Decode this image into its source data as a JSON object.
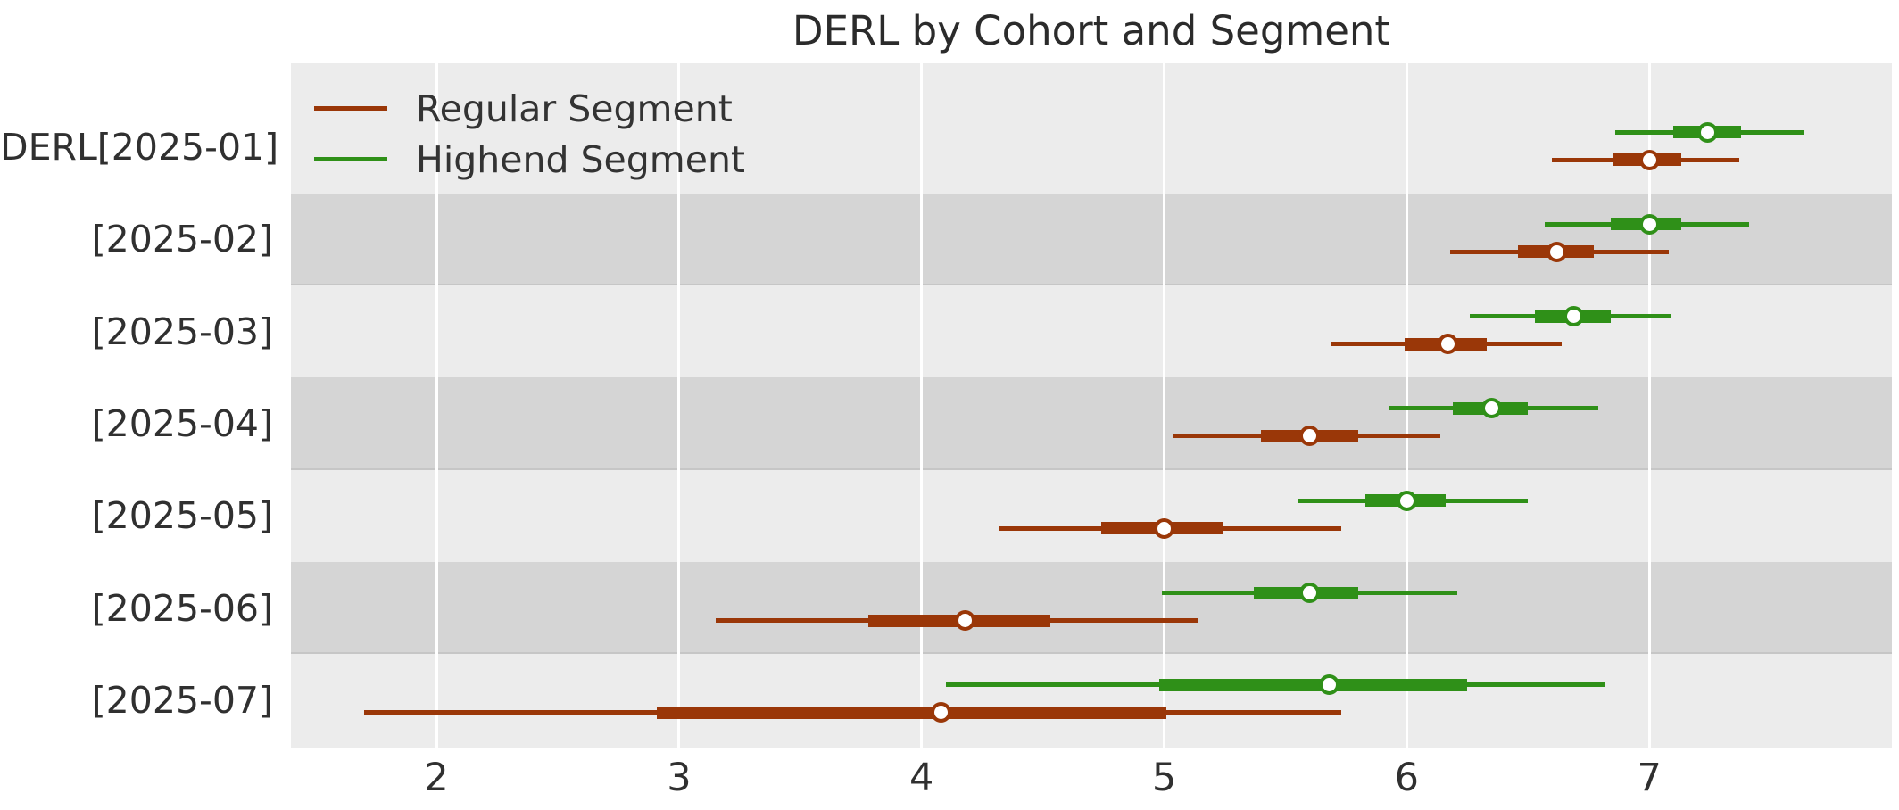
{
  "title": "DERL by Cohort and Segment",
  "colors": {
    "regular": "#9a3708",
    "highend": "#2f9018",
    "plot_bg_light": "#ececec",
    "band_dark": "#d5d5d5",
    "gridline": "#ffffff",
    "text": "#303030"
  },
  "legend": {
    "items": [
      {
        "label": "Regular Segment",
        "color_key": "regular"
      },
      {
        "label": "Highend Segment",
        "color_key": "highend"
      }
    ]
  },
  "chart_data": {
    "type": "scatter",
    "subtype": "forest_interval_plot",
    "title": "DERL by Cohort and Segment",
    "xlabel": "",
    "ylabel": "",
    "categories": [
      "DERL[2025-01]",
      "[2025-02]",
      "[2025-03]",
      "[2025-04]",
      "[2025-05]",
      "[2025-06]",
      "[2025-07]"
    ],
    "xticks": [
      2,
      3,
      4,
      5,
      6,
      7
    ],
    "xlim": [
      1.4,
      8.0
    ],
    "grid": "vertical-white-on-gray",
    "row_banding": "alternating (rows 2,4,6 darker)",
    "legend_position": "upper-left-inside",
    "series": [
      {
        "name": "Highend Segment",
        "color_key": "highend",
        "row_position": "upper",
        "points": [
          {
            "category": "DERL[2025-01]",
            "median": 7.24,
            "inner": [
              7.1,
              7.38
            ],
            "outer": [
              6.86,
              7.64
            ]
          },
          {
            "category": "[2025-02]",
            "median": 7.0,
            "inner": [
              6.84,
              7.13
            ],
            "outer": [
              6.57,
              7.41
            ]
          },
          {
            "category": "[2025-03]",
            "median": 6.69,
            "inner": [
              6.53,
              6.84
            ],
            "outer": [
              6.26,
              7.09
            ]
          },
          {
            "category": "[2025-04]",
            "median": 6.35,
            "inner": [
              6.19,
              6.5
            ],
            "outer": [
              5.93,
              6.79
            ]
          },
          {
            "category": "[2025-05]",
            "median": 6.0,
            "inner": [
              5.83,
              6.16
            ],
            "outer": [
              5.55,
              6.5
            ]
          },
          {
            "category": "[2025-06]",
            "median": 5.6,
            "inner": [
              5.37,
              5.8
            ],
            "outer": [
              4.99,
              6.21
            ]
          },
          {
            "category": "[2025-07]",
            "median": 5.68,
            "inner": [
              4.98,
              6.25
            ],
            "outer": [
              4.1,
              6.82
            ]
          }
        ]
      },
      {
        "name": "Regular Segment",
        "color_key": "regular",
        "row_position": "lower",
        "points": [
          {
            "category": "DERL[2025-01]",
            "median": 7.0,
            "inner": [
              6.85,
              7.13
            ],
            "outer": [
              6.6,
              7.37
            ]
          },
          {
            "category": "[2025-02]",
            "median": 6.62,
            "inner": [
              6.46,
              6.77
            ],
            "outer": [
              6.18,
              7.08
            ]
          },
          {
            "category": "[2025-03]",
            "median": 6.17,
            "inner": [
              5.99,
              6.33
            ],
            "outer": [
              5.69,
              6.64
            ]
          },
          {
            "category": "[2025-04]",
            "median": 5.6,
            "inner": [
              5.4,
              5.8
            ],
            "outer": [
              5.04,
              6.14
            ]
          },
          {
            "category": "[2025-05]",
            "median": 5.0,
            "inner": [
              4.74,
              5.24
            ],
            "outer": [
              4.32,
              5.73
            ]
          },
          {
            "category": "[2025-06]",
            "median": 4.18,
            "inner": [
              3.78,
              4.53
            ],
            "outer": [
              3.15,
              5.14
            ]
          },
          {
            "category": "[2025-07]",
            "median": 4.08,
            "inner": [
              2.91,
              5.01
            ],
            "outer": [
              1.7,
              5.73
            ]
          }
        ]
      }
    ]
  }
}
